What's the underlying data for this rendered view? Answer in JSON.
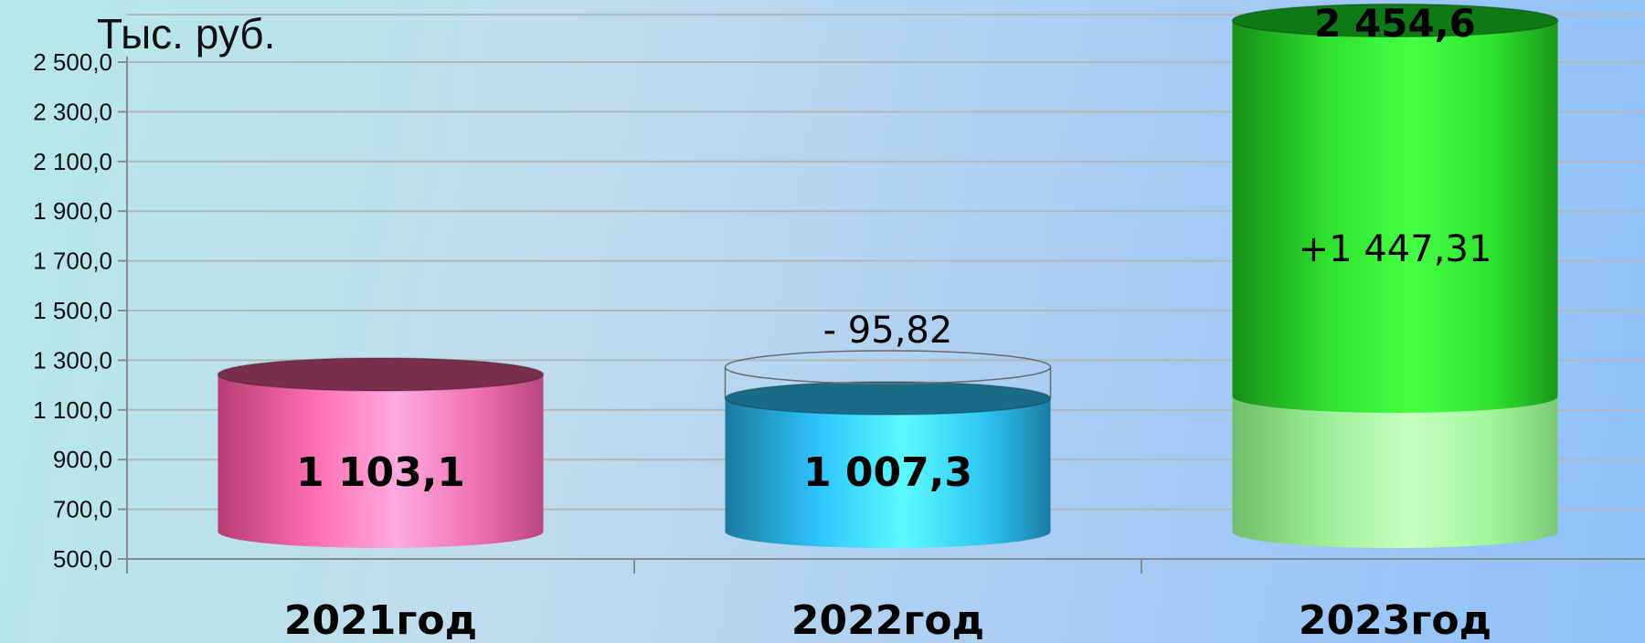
{
  "chart_data": {
    "type": "bar",
    "style": "cylinder",
    "unit_label": "Тыс. руб.",
    "ylim": [
      500,
      2500
    ],
    "yticks": [
      500,
      700,
      900,
      1100,
      1300,
      1500,
      1700,
      1900,
      2100,
      2300,
      2500
    ],
    "ytick_labels": [
      "500,0",
      "700,0",
      "900,0",
      "1 100,0",
      "1 300,0",
      "1 500,0",
      "1 700,0",
      "1 900,0",
      "2 100,0",
      "2 300,0",
      "2 500,0"
    ],
    "categories": [
      "2021год",
      "2022год",
      "2023год"
    ],
    "bars": [
      {
        "category": "2021год",
        "value": 1103.1,
        "label": "1 103,1",
        "color": "#ff6fb0"
      },
      {
        "category": "2022год",
        "value": 1007.3,
        "label": "1 007,3",
        "color": "#2fd2ff",
        "change": -95.82,
        "change_label": "- 95,82"
      },
      {
        "category": "2023год",
        "value": 2454.6,
        "label": "2 454,6",
        "base_value": 1007.3,
        "base_color": "#a8f59e",
        "color": "#2ee62e",
        "change": 1447.31,
        "change_label": "+1 447,31"
      }
    ],
    "grid": true,
    "gridline_color": "#b7b7b7"
  }
}
